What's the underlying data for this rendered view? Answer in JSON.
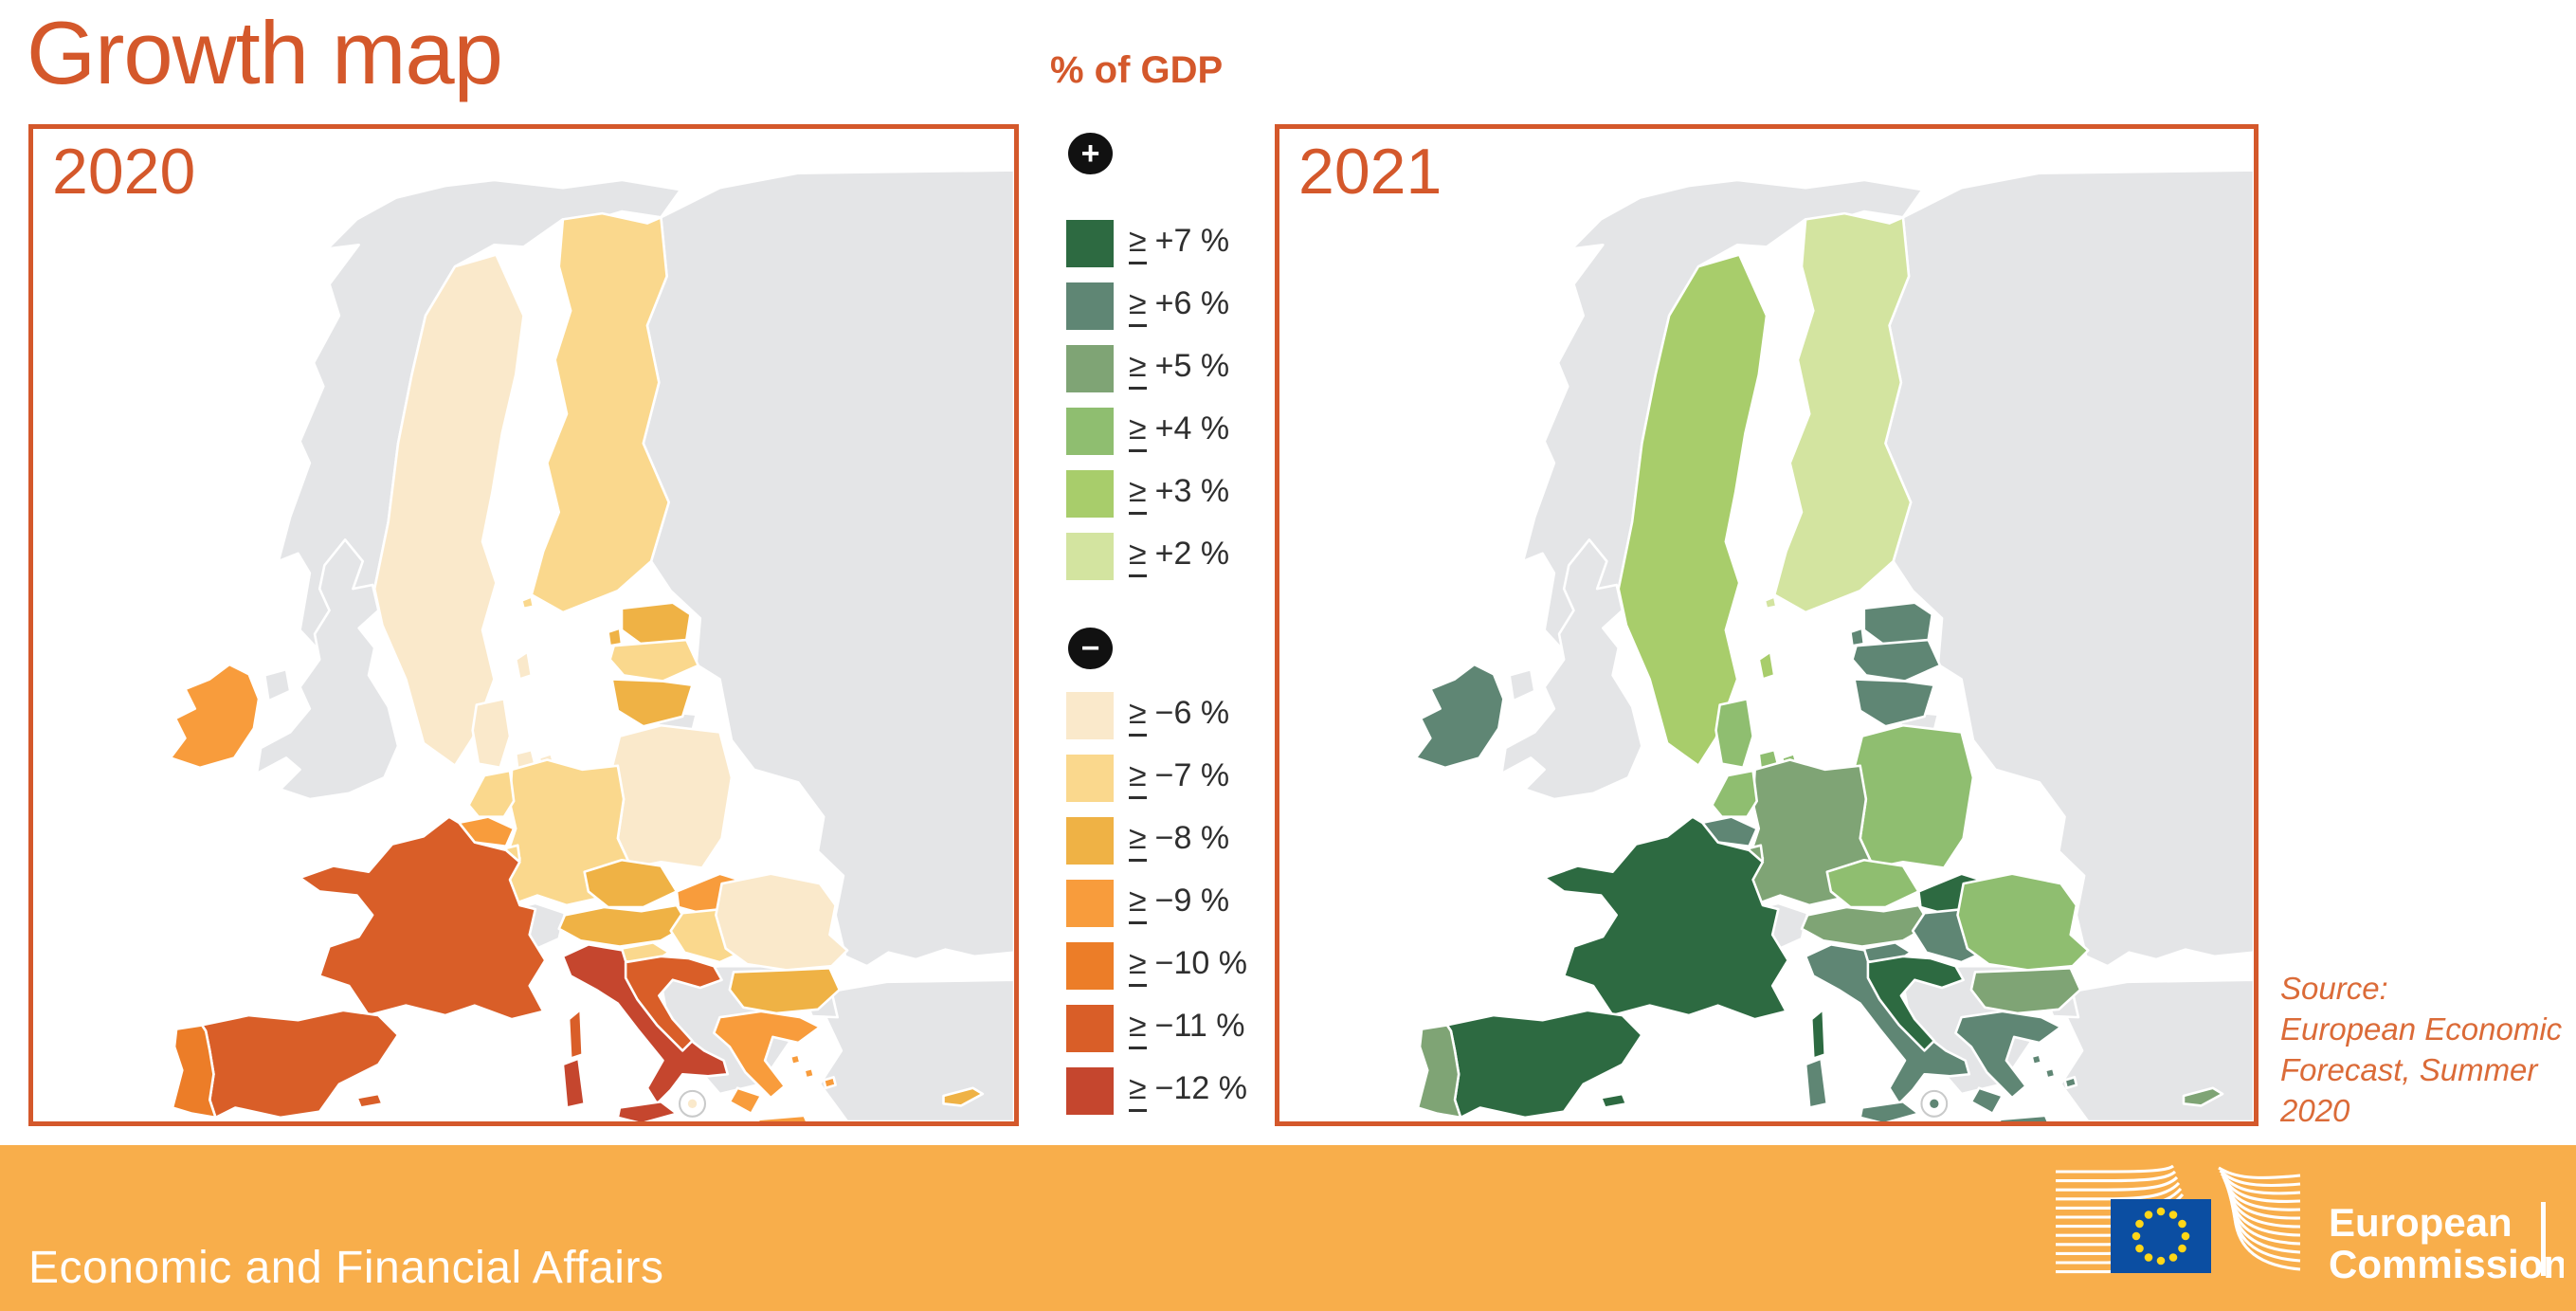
{
  "header": {
    "title": "Growth map",
    "unit_label": "% of GDP"
  },
  "panels": [
    {
      "year": "2020",
      "scale": "negative"
    },
    {
      "year": "2021",
      "scale": "positive"
    }
  ],
  "legend": {
    "geq_symbol": "≥",
    "plus_symbol": "+",
    "minus_symbol": "−",
    "positive": [
      {
        "label": "+7 %",
        "cls": "p7"
      },
      {
        "label": "+6 %",
        "cls": "p6"
      },
      {
        "label": "+5 %",
        "cls": "p5"
      },
      {
        "label": "+4 %",
        "cls": "p4"
      },
      {
        "label": "+3 %",
        "cls": "p3"
      },
      {
        "label": "+2 %",
        "cls": "p2"
      }
    ],
    "negative": [
      {
        "label": "−6 %",
        "cls": "m6"
      },
      {
        "label": "−7 %",
        "cls": "m7"
      },
      {
        "label": "−8 %",
        "cls": "m8"
      },
      {
        "label": "−9 %",
        "cls": "m9"
      },
      {
        "label": "−10 %",
        "cls": "m10"
      },
      {
        "label": "−11 %",
        "cls": "m11"
      },
      {
        "label": "−12 %",
        "cls": "m12"
      }
    ]
  },
  "class_colors": {
    "p7": "#2D6A41",
    "p6": "#5F8674",
    "p5": "#7FA475",
    "p4": "#8FBE70",
    "p3": "#A8CD6B",
    "p2": "#D3E4A0",
    "m6": "#FAE9CB",
    "m7": "#FAD88D",
    "m8": "#EFB245",
    "m9": "#F89C3C",
    "m10": "#EC7D28",
    "m11": "#D95E28",
    "m12": "#C5462E"
  },
  "colors": {
    "accent": "#D4582B",
    "accent_light": "#DB6B38",
    "footer_bg": "#F8AE4B",
    "non_eu": "#E4E5E7",
    "legend_text": "#2F2F2F",
    "badge": "#111111",
    "flag_blue": "#0B4EA2",
    "star_yellow": "#FFD617"
  },
  "countries": [
    {
      "id": "IE",
      "name": "Ireland",
      "c2020": "m9",
      "c2021": "p6"
    },
    {
      "id": "PT",
      "name": "Portugal",
      "c2020": "m10",
      "c2021": "p5"
    },
    {
      "id": "ES",
      "name": "Spain",
      "c2020": "m11",
      "c2021": "p7"
    },
    {
      "id": "FR",
      "name": "France",
      "c2020": "m11",
      "c2021": "p7"
    },
    {
      "id": "BE",
      "name": "Belgium",
      "c2020": "m9",
      "c2021": "p6"
    },
    {
      "id": "NL",
      "name": "Netherlands",
      "c2020": "m7",
      "c2021": "p4"
    },
    {
      "id": "LU",
      "name": "Luxembourg",
      "c2020": "m7",
      "c2021": "p5"
    },
    {
      "id": "DE",
      "name": "Germany",
      "c2020": "m7",
      "c2021": "p5"
    },
    {
      "id": "DK",
      "name": "Denmark",
      "c2020": "m6",
      "c2021": "p4"
    },
    {
      "id": "SE",
      "name": "Sweden",
      "c2020": "m6",
      "c2021": "p3"
    },
    {
      "id": "FI",
      "name": "Finland",
      "c2020": "m7",
      "c2021": "p2"
    },
    {
      "id": "EE",
      "name": "Estonia",
      "c2020": "m8",
      "c2021": "p6"
    },
    {
      "id": "LV",
      "name": "Latvia",
      "c2020": "m7",
      "c2021": "p6"
    },
    {
      "id": "LT",
      "name": "Lithuania",
      "c2020": "m8",
      "c2021": "p6"
    },
    {
      "id": "PL",
      "name": "Poland",
      "c2020": "m6",
      "c2021": "p4"
    },
    {
      "id": "CZ",
      "name": "Czechia",
      "c2020": "m8",
      "c2021": "p4"
    },
    {
      "id": "SK",
      "name": "Slovakia",
      "c2020": "m9",
      "c2021": "p7"
    },
    {
      "id": "AT",
      "name": "Austria",
      "c2020": "m8",
      "c2021": "p5"
    },
    {
      "id": "HU",
      "name": "Hungary",
      "c2020": "m7",
      "c2021": "p6"
    },
    {
      "id": "SI",
      "name": "Slovenia",
      "c2020": "m7",
      "c2021": "p6"
    },
    {
      "id": "HR",
      "name": "Croatia",
      "c2020": "m11",
      "c2021": "p7"
    },
    {
      "id": "IT",
      "name": "Italy",
      "c2020": "m12",
      "c2021": "p6"
    },
    {
      "id": "RO",
      "name": "Romania",
      "c2020": "m6",
      "c2021": "p4"
    },
    {
      "id": "BG",
      "name": "Bulgaria",
      "c2020": "m8",
      "c2021": "p5"
    },
    {
      "id": "GR",
      "name": "Greece",
      "c2020": "m9",
      "c2021": "p6"
    },
    {
      "id": "CY",
      "name": "Cyprus",
      "c2020": "m8",
      "c2021": "p5"
    },
    {
      "id": "MT",
      "name": "Malta",
      "c2020": "m6",
      "c2021": "p6"
    }
  ],
  "source": {
    "lines": [
      "Source:",
      "European Economic",
      "Forecast, Summer",
      "2020"
    ]
  },
  "footer": {
    "department": "Economic and Financial Affairs",
    "logo_line1": "European",
    "logo_line2": "Commission"
  }
}
